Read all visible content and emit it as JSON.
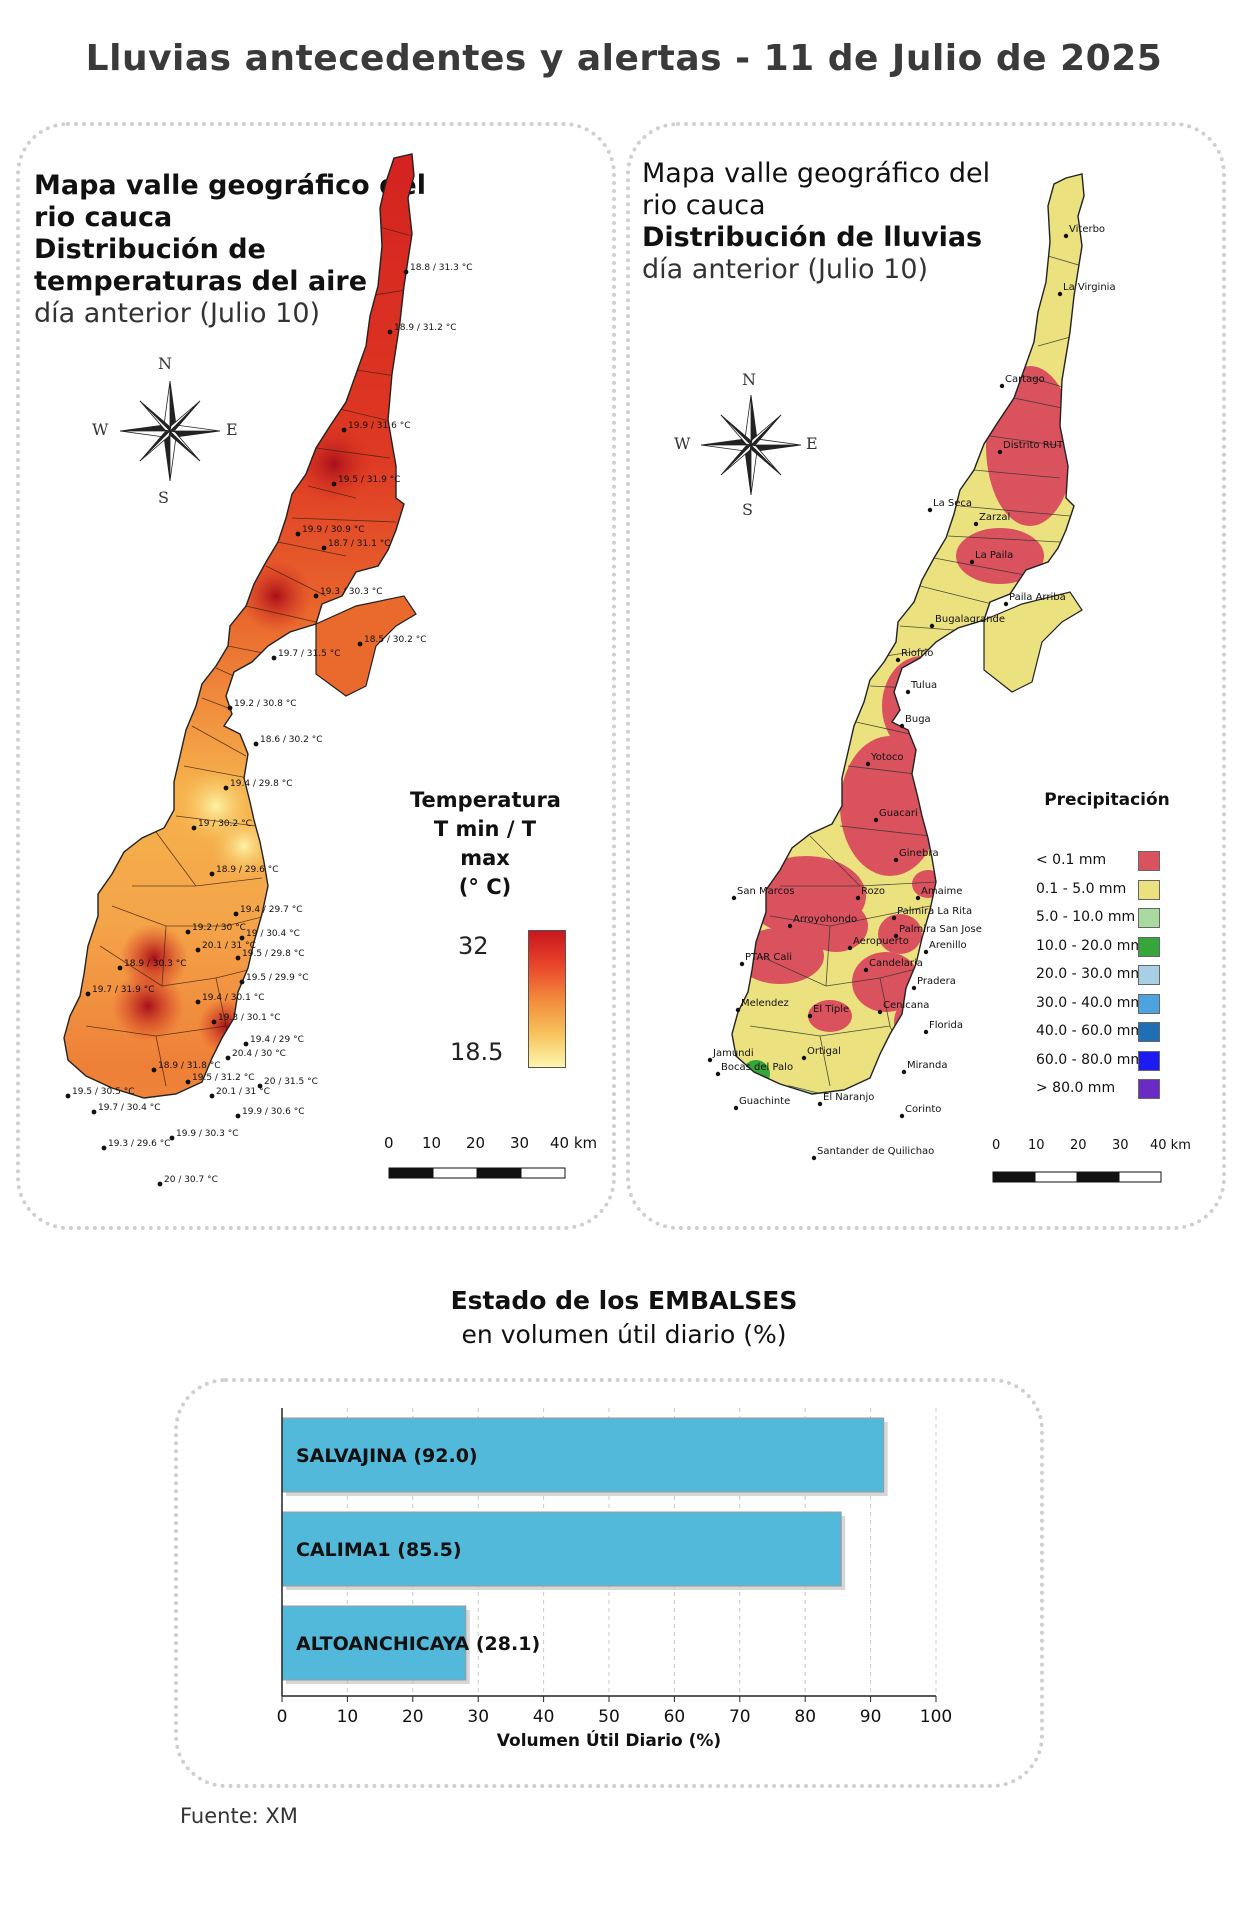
{
  "title": "Lluvias antecedentes y alertas - 11 de Julio de 2025",
  "temp_map": {
    "title_line1": "Mapa valle geográfico del",
    "title_line2": "rio cauca",
    "title_line3": "Distribución de",
    "title_line4": "temperaturas del aire",
    "subtitle": "día anterior (Julio 10)",
    "legend_title_1": "Temperatura",
    "legend_title_2": "T min / T max",
    "legend_title_3": "(° C)",
    "legend_max": "32",
    "legend_min": "18.5",
    "gradient_colors": [
      "#c8161d",
      "#e8452a",
      "#f28a3b",
      "#f7c15a",
      "#fdf6b0"
    ],
    "scale_ticks": [
      "0",
      "10",
      "20",
      "30",
      "40 km"
    ],
    "compass": {
      "n": "N",
      "s": "S",
      "e": "E",
      "w": "W"
    },
    "stations": [
      "18.8 / 31.3 °C",
      "18.9 / 31.2 °C",
      "19.9 / 31.6 °C",
      "19.5 / 31.9 °C",
      "19.9 / 30.9 °C",
      "18.7 / 31.1 °C",
      "19.3 / 30.3 °C",
      "18.5 / 30.2 °C",
      "19.7 / 31.5 °C",
      "19.2 / 30.8 °C",
      "18.6 / 30.2 °C",
      "19.4 / 29.8 °C",
      "19 / 30.2 °C",
      "18.9 / 29.6 °C",
      "19.4 / 29.7 °C",
      "19.2 / 30 °C",
      "19 / 30.4 °C",
      "20.1 / 31 °C",
      "19.5 / 29.8 °C",
      "18.9 / 30.3 °C",
      "19.5 / 29.9 °C",
      "19.7 / 31.9 °C",
      "19.4 / 30.1 °C",
      "19.3 / 30.1 °C",
      "19.4 / 29 °C",
      "20.4 / 30 °C",
      "18.9 / 31.8 °C",
      "19.5 / 31.2 °C",
      "20 / 31.5 °C",
      "19.5 / 30.5 °C",
      "20.1 / 31 °C",
      "19.7 / 30.4 °C",
      "19.9 / 30.6 °C",
      "19.9 / 30.3 °C",
      "19.3 / 29.6 °C",
      "20 / 30.7 °C"
    ]
  },
  "rain_map": {
    "title_line1": "Mapa valle geográfico del",
    "title_line2": "rio cauca",
    "title_line3": "Distribución de lluvias",
    "subtitle": "día anterior (Julio 10)",
    "legend_title": "Precipitación",
    "legend": [
      {
        "label": "< 0.1 mm",
        "color": "#d9525e"
      },
      {
        "label": "0.1 - 5.0 mm",
        "color": "#ebe17f"
      },
      {
        "label": "5.0 - 10.0 mm",
        "color": "#a9dba0"
      },
      {
        "label": "10.0 - 20.0 mm",
        "color": "#37a63a"
      },
      {
        "label": "20.0 - 30.0 mm",
        "color": "#a8cfe3"
      },
      {
        "label": "30.0 - 40.0 mm",
        "color": "#4da3de"
      },
      {
        "label": "40.0 - 60.0 mm",
        "color": "#1f6fb5"
      },
      {
        "label": "60.0 - 80.0 mm",
        "color": "#1b1bf2"
      },
      {
        "label": "> 80.0 mm",
        "color": "#6a2bc4"
      }
    ],
    "scale_ticks": [
      "0",
      "10",
      "20",
      "30",
      "40 km"
    ],
    "compass": {
      "n": "N",
      "s": "S",
      "e": "E",
      "w": "W"
    },
    "stations": [
      "Viterbo",
      "La Virginia",
      "Cartago",
      "Distrito RUT",
      "La Seca",
      "Zarzal",
      "La Paila",
      "Paila Arriba",
      "Bugalagrande",
      "Riofrio",
      "Tulua",
      "Buga",
      "Yotoco",
      "Guacari",
      "Ginebra",
      "San Marcos",
      "Rozo",
      "Amaime",
      "Palmira La Rita",
      "Arroyohondo",
      "Palmira San Jose",
      "Aeropuerto",
      "Arenillo",
      "PTAR Cali",
      "Candelaria",
      "Pradera",
      "Melendez",
      "El Tiple",
      "Cenicana",
      "Florida",
      "Jamundi",
      "Bocas del Palo",
      "Ortigal",
      "Miranda",
      "Guachinte",
      "El Naranjo",
      "Corinto",
      "Santander de Quilichao"
    ]
  },
  "reservoirs": {
    "heading_bold": "Estado de los EMBALSES",
    "heading_sub": "en volumen útil diario (%)",
    "source": "Fuente: XM"
  },
  "chart_data": {
    "type": "bar",
    "orientation": "horizontal",
    "categories": [
      "SALVAJINA (92.0)",
      "CALIMA1 (85.5)",
      "ALTOANCHICAYA (28.1)"
    ],
    "values": [
      92.0,
      85.5,
      28.1
    ],
    "bar_color": "#52b9da",
    "xlabel": "Volumen Útil Diario (%)",
    "xlim": [
      0,
      100
    ],
    "xticks": [
      "0",
      "10",
      "20",
      "30",
      "40",
      "50",
      "60",
      "70",
      "80",
      "90",
      "100"
    ],
    "grid": "vertical dashed"
  }
}
